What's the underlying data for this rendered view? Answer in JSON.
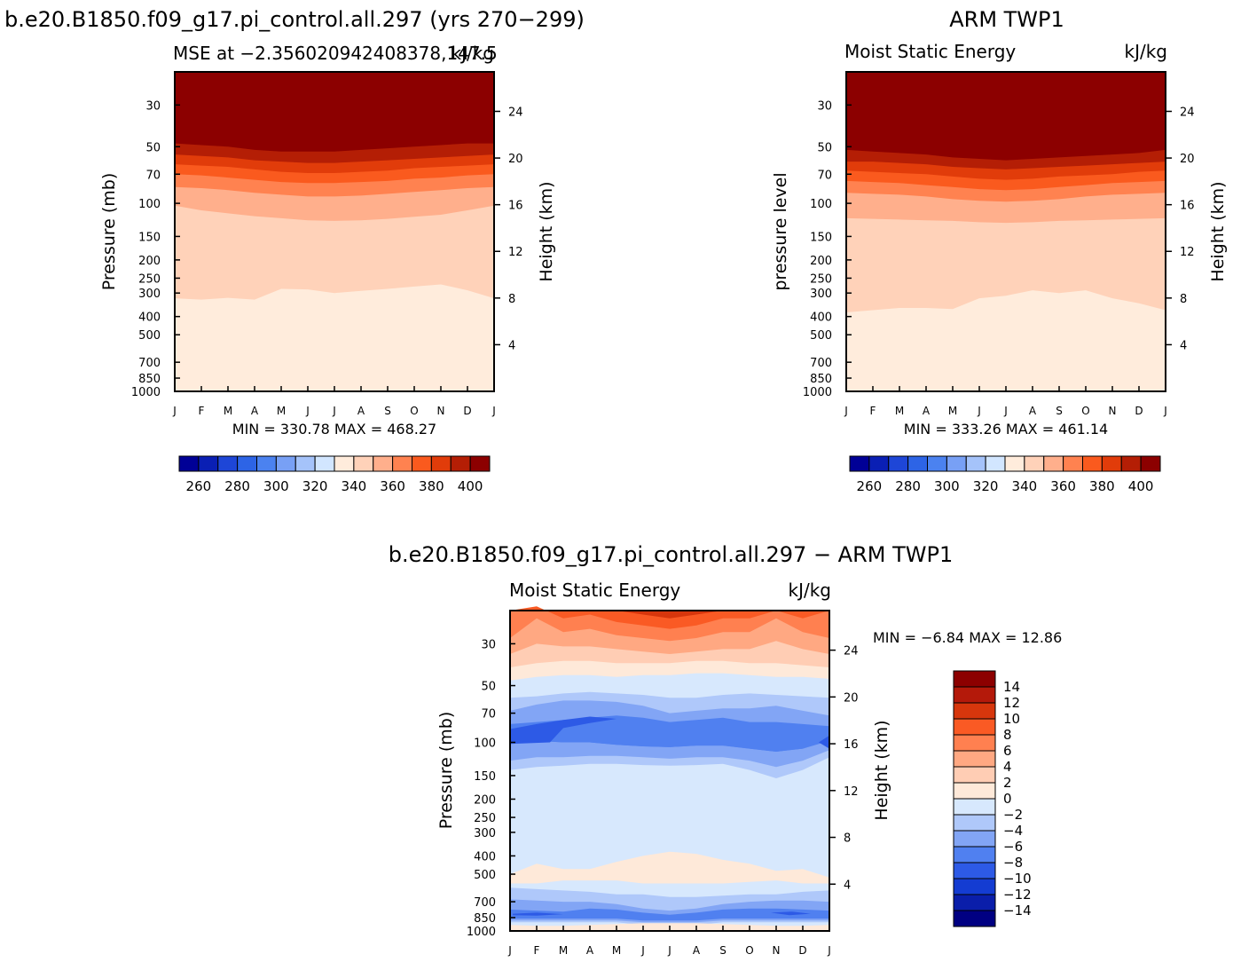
{
  "months": [
    "J",
    "F",
    "M",
    "A",
    "M",
    "J",
    "J",
    "A",
    "S",
    "O",
    "N",
    "D",
    "J"
  ],
  "pressure_ticks": [
    30,
    50,
    70,
    100,
    150,
    200,
    250,
    300,
    400,
    500,
    700,
    850,
    1000
  ],
  "height_ticks": [
    24,
    20,
    16,
    12,
    8,
    4
  ],
  "colors": {
    "mse": [
      "#000096",
      "#0a1fb4",
      "#1e46d7",
      "#2d64e6",
      "#4b82f0",
      "#78a0f5",
      "#a5c3fa",
      "#d2e6ff",
      "#ffecdc",
      "#ffd2b9",
      "#ffaf8c",
      "#ff8250",
      "#fa5a1e",
      "#e13c0a",
      "#b41e05",
      "#8c0000"
    ],
    "diff": [
      "#000082",
      "#0a1eaa",
      "#143cd2",
      "#2d5ae6",
      "#5080f0",
      "#82a5f5",
      "#afc8fa",
      "#d7e8fd",
      "#fee9d9",
      "#ffcdb4",
      "#ffa882",
      "#ff8050",
      "#fa5a24",
      "#d7360c",
      "#b4190a",
      "#8c0000"
    ]
  },
  "chart_data": [
    {
      "type": "contour",
      "title": "b.e20.B1850.f09_g17.pi_control.all.297 (yrs 270−299)",
      "left_label": "MSE at −2.356020942408378,147.5",
      "right_label": "kJ/kg",
      "ylabel": "Pressure (mb)",
      "ylabel_right": "Height (km)",
      "minmax": "MIN = 330.78  MAX = 468.27",
      "min": 330.78,
      "max": 468.27,
      "boundaries": [
        {
          "level": 400,
          "p": [
            48,
            49,
            50,
            52,
            53,
            53,
            53,
            52,
            51,
            50,
            49,
            48,
            48
          ]
        },
        {
          "level": 390,
          "p": [
            55,
            56,
            57,
            59,
            60,
            61,
            61,
            60,
            59,
            58,
            57,
            56,
            55
          ]
        },
        {
          "level": 380,
          "p": [
            62,
            63,
            64,
            66,
            68,
            69,
            69,
            68,
            67,
            65,
            64,
            63,
            62
          ]
        },
        {
          "level": 370,
          "p": [
            70,
            71,
            73,
            75,
            77,
            78,
            78,
            77,
            76,
            74,
            73,
            71,
            70
          ]
        },
        {
          "level": 360,
          "p": [
            82,
            83,
            85,
            88,
            90,
            92,
            92,
            91,
            89,
            87,
            85,
            83,
            82
          ]
        },
        {
          "level": 350,
          "p": [
            103,
            109,
            113,
            117,
            120,
            123,
            124,
            123,
            121,
            118,
            115,
            109,
            103
          ]
        },
        {
          "level": 340,
          "p": [
            320,
            325,
            318,
            325,
            285,
            287,
            300,
            292,
            285,
            277,
            270,
            290,
            320
          ]
        },
        {
          "level": 330,
          "p": [
            975,
            975,
            975,
            975,
            975,
            975,
            975,
            975,
            975,
            975,
            975,
            975,
            975
          ]
        }
      ],
      "colorbar_labels": [
        "260",
        "280",
        "300",
        "320",
        "340",
        "360",
        "380",
        "400"
      ]
    },
    {
      "type": "contour",
      "title": "ARM TWP1",
      "left_label": "Moist Static Energy",
      "right_label": "kJ/kg",
      "ylabel": "pressure level",
      "ylabel_right": "Height (km)",
      "minmax": "MIN = 333.26  MAX = 461.14",
      "min": 333.26,
      "max": 461.14,
      "boundaries": [
        {
          "level": 400,
          "p": [
            52,
            53,
            54,
            55,
            57,
            58,
            59,
            58,
            57,
            56,
            55,
            54,
            52
          ]
        },
        {
          "level": 390,
          "p": [
            60,
            60,
            61,
            62,
            64,
            65,
            66,
            65,
            64,
            63,
            62,
            61,
            60
          ]
        },
        {
          "level": 380,
          "p": [
            67,
            68,
            69,
            70,
            72,
            74,
            75,
            74,
            72,
            71,
            70,
            68,
            67
          ]
        },
        {
          "level": 370,
          "p": [
            76,
            77,
            78,
            80,
            82,
            84,
            85,
            84,
            82,
            80,
            78,
            77,
            76
          ]
        },
        {
          "level": 360,
          "p": [
            88,
            89,
            90,
            92,
            95,
            97,
            98,
            97,
            95,
            92,
            90,
            89,
            88
          ]
        },
        {
          "level": 350,
          "p": [
            120,
            121,
            122,
            123,
            124,
            126,
            127,
            126,
            124,
            123,
            122,
            121,
            120
          ]
        },
        {
          "level": 340,
          "p": [
            380,
            370,
            360,
            360,
            365,
            320,
            310,
            290,
            300,
            290,
            320,
            340,
            370
          ]
        },
        {
          "level": 330,
          "p": [
            930,
            920,
            950,
            920,
            880,
            920,
            950,
            960,
            950,
            960,
            900,
            900,
            900
          ]
        }
      ],
      "colorbar_labels": [
        "260",
        "280",
        "300",
        "320",
        "340",
        "360",
        "380",
        "400"
      ]
    },
    {
      "type": "contour",
      "title": "b.e20.B1850.f09_g17.pi_control.all.297 − ARM TWP1",
      "left_label": "Moist Static Energy",
      "right_label": "kJ/kg",
      "ylabel": "Pressure (mb)",
      "ylabel_right": "Height (km)",
      "minmax": "MIN =   −6.84  MAX =   12.86",
      "min": -6.84,
      "max": 12.86,
      "colorbar_labels": [
        "14",
        "12",
        "10",
        "8",
        "6",
        "4",
        "2",
        "0",
        "−2",
        "−4",
        "−6",
        "−8",
        "−10",
        "−12",
        "−14"
      ]
    }
  ]
}
